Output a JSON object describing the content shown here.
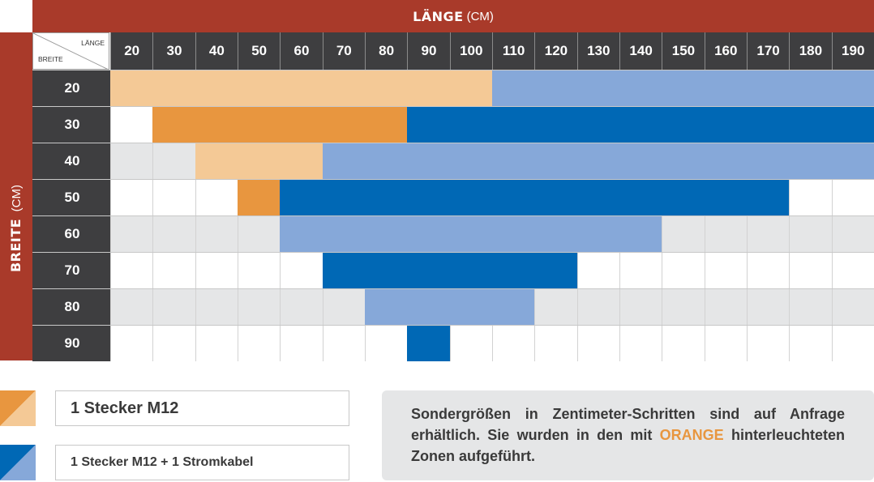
{
  "header": {
    "laenge_title": "LÄNGE",
    "laenge_unit": "(CM)",
    "breite_title": "BREITE",
    "breite_unit": "(CM)"
  },
  "corner": {
    "laenge_label": "LÄNGE",
    "breite_label": "BREITE"
  },
  "columns": [
    "20",
    "30",
    "40",
    "50",
    "60",
    "70",
    "80",
    "90",
    "100",
    "110",
    "120",
    "130",
    "140",
    "150",
    "160",
    "170",
    "180",
    "190"
  ],
  "rows": [
    {
      "label": "20",
      "cells": [
        "lo",
        "lo",
        "lo",
        "lo",
        "lo",
        "lo",
        "lo",
        "lo",
        "lo",
        "lb",
        "lb",
        "lb",
        "lb",
        "lb",
        "lb",
        "lb",
        "lb",
        "lb"
      ]
    },
    {
      "label": "30",
      "cells": [
        "w",
        "o",
        "o",
        "o",
        "o",
        "o",
        "o",
        "b",
        "b",
        "b",
        "b",
        "b",
        "b",
        "b",
        "b",
        "b",
        "b",
        "b"
      ]
    },
    {
      "label": "40",
      "cells": [
        "g",
        "g",
        "lo",
        "lo",
        "lo",
        "lb",
        "lb",
        "lb",
        "lb",
        "lb",
        "lb",
        "lb",
        "lb",
        "lb",
        "lb",
        "lb",
        "lb",
        "lb"
      ]
    },
    {
      "label": "50",
      "cells": [
        "w",
        "w",
        "w",
        "o",
        "b",
        "b",
        "b",
        "b",
        "b",
        "b",
        "b",
        "b",
        "b",
        "b",
        "b",
        "b",
        "w",
        "w"
      ]
    },
    {
      "label": "60",
      "cells": [
        "g",
        "g",
        "g",
        "g",
        "lb",
        "lb",
        "lb",
        "lb",
        "lb",
        "lb",
        "lb",
        "lb",
        "lb",
        "g",
        "g",
        "g",
        "g",
        "g"
      ]
    },
    {
      "label": "70",
      "cells": [
        "w",
        "w",
        "w",
        "w",
        "w",
        "b",
        "b",
        "b",
        "b",
        "b",
        "b",
        "w",
        "w",
        "w",
        "w",
        "w",
        "w",
        "w"
      ]
    },
    {
      "label": "80",
      "cells": [
        "g",
        "g",
        "g",
        "g",
        "g",
        "g",
        "lb",
        "lb",
        "lb",
        "lb",
        "g",
        "g",
        "g",
        "g",
        "g",
        "g",
        "g",
        "g"
      ]
    },
    {
      "label": "90",
      "cells": [
        "w",
        "w",
        "w",
        "w",
        "w",
        "w",
        "w",
        "b",
        "w",
        "w",
        "w",
        "w",
        "w",
        "w",
        "w",
        "w",
        "w",
        "w"
      ]
    }
  ],
  "colors": {
    "brand_red": "#a93a2a",
    "header_dark": "#3e3e40",
    "orange": "#e8963f",
    "light_orange": "#f4c996",
    "blue": "#0068b5",
    "light_blue": "#86a8d9",
    "grey": "#e5e6e7",
    "white": "#ffffff"
  },
  "legend": [
    {
      "label": "1 Stecker M12",
      "colors": [
        "#e8963f",
        "#f4c996"
      ]
    },
    {
      "label": "1 Stecker M12 + 1 Stromkabel",
      "colors": [
        "#0068b5",
        "#86a8d9"
      ]
    }
  ],
  "note": {
    "before": "Sondergrößen in Zentimeter-Schritten sind auf Anfrage erhältlich. Sie wurden in den mit",
    "highlight": "ORANGE",
    "after": "hinterleuchteten Zonen aufgeführt."
  }
}
